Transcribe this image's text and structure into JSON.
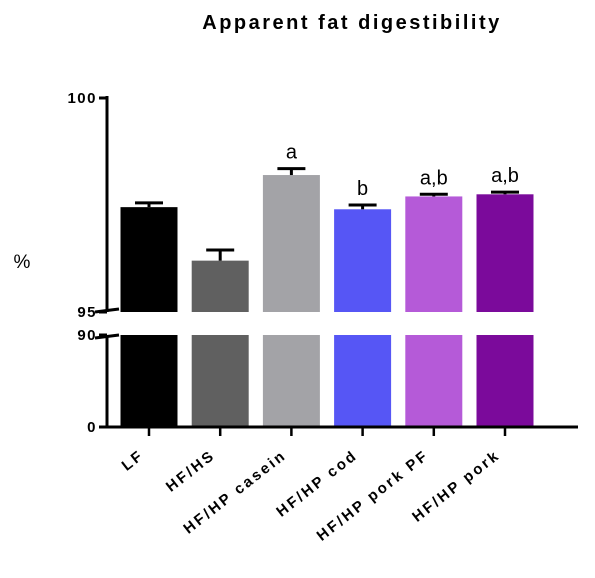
{
  "chart_data": {
    "type": "bar",
    "title": "Apparent fat digestibility",
    "ylabel": "%",
    "xlabel": "",
    "categories": [
      "LF",
      "HF/HS",
      "HF/HP casein",
      "HF/HP cod",
      "HF/HP pork PF",
      "HF/HP pork"
    ],
    "values": [
      97.45,
      96.2,
      98.2,
      97.4,
      97.7,
      97.75
    ],
    "errors": [
      0.1,
      0.25,
      0.15,
      0.1,
      0.05,
      0.05
    ],
    "annotations": [
      "",
      "",
      "a",
      "b",
      "a,b",
      "a,b"
    ],
    "colors": [
      "#000000",
      "#606060",
      "#a3a3a7",
      "#5656f5",
      "#b55ad8",
      "#7b0a9b"
    ],
    "axis_break": {
      "lower_segment": [
        0,
        90
      ],
      "upper_segment": [
        95,
        100
      ]
    },
    "yticks": [
      {
        "value": 0,
        "label": "0"
      },
      {
        "value": 90,
        "label": "90"
      },
      {
        "value": 95,
        "label": "95"
      },
      {
        "value": 100,
        "label": "100"
      }
    ],
    "grid": false,
    "legend": "none"
  }
}
